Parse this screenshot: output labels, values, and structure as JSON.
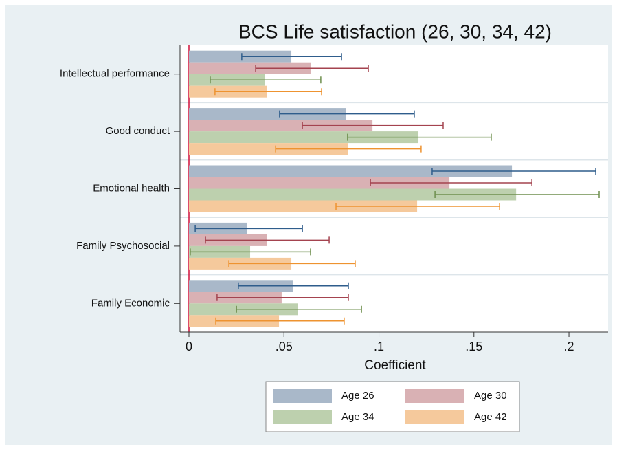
{
  "chart_data": {
    "type": "bar",
    "orientation": "horizontal",
    "title": "BCS Life satisfaction (26, 30, 34, 42)",
    "x_label": "Coefficient",
    "categories": [
      "Intellectual performance",
      "Good conduct",
      "Emotional health",
      "Family Psychosocial",
      "Family Economic"
    ],
    "series": [
      {
        "name": "Age 26",
        "color": "#a9b8c9",
        "error_color": "#2f5d8c",
        "values": [
          0.0539,
          0.0828,
          0.17,
          0.0307,
          0.0546
        ],
        "lower": [
          0.0278,
          0.0477,
          0.128,
          0.0033,
          0.026
        ],
        "upper": [
          0.0803,
          0.1186,
          0.2141,
          0.0597,
          0.0839
        ]
      },
      {
        "name": "Age 30",
        "color": "#d9b1b4",
        "error_color": "#a4434f",
        "values": [
          0.064,
          0.0966,
          0.1371,
          0.0409,
          0.0488
        ],
        "lower": [
          0.0351,
          0.0597,
          0.0955,
          0.0087,
          0.0148
        ],
        "upper": [
          0.0944,
          0.1338,
          0.1805,
          0.0738,
          0.0839
        ]
      },
      {
        "name": "Age 34",
        "color": "#bdd0ae",
        "error_color": "#6e8f4e",
        "values": [
          0.0401,
          0.1208,
          0.1722,
          0.0322,
          0.0575
        ],
        "lower": [
          0.0112,
          0.0835,
          0.1295,
          0.0007,
          0.025
        ],
        "upper": [
          0.0694,
          0.1591,
          0.2159,
          0.064,
          0.0908
        ]
      },
      {
        "name": "Age 42",
        "color": "#f5c99c",
        "error_color": "#ee9330",
        "values": [
          0.0412,
          0.0839,
          0.1201,
          0.0539,
          0.0474
        ],
        "lower": [
          0.0137,
          0.0456,
          0.0774,
          0.021,
          0.0141
        ],
        "upper": [
          0.0698,
          0.1222,
          0.1635,
          0.0875,
          0.0817
        ]
      }
    ],
    "xlim": [
      -0.0047,
      0.2206
    ],
    "xticks": [
      0,
      {
        "value": 0.05,
        "label": ".05"
      },
      {
        "value": 0.1,
        "label": ".1"
      },
      {
        "value": 0.15,
        "label": ".15"
      },
      {
        "value": 0.2,
        "label": ".2"
      }
    ],
    "reference_line": 0,
    "reference_color": "#d0103a",
    "legend": "bottom"
  }
}
